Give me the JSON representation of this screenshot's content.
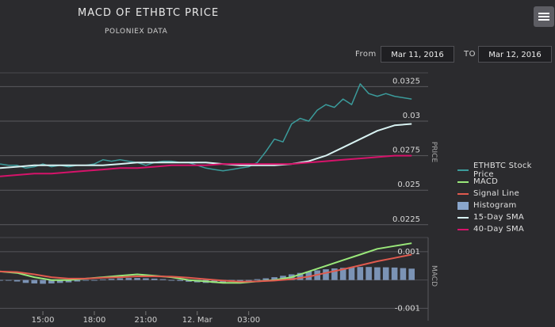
{
  "header": {
    "title": "MACD OF ETHBTC PRICE",
    "subtitle": "POLONIEX DATA"
  },
  "range": {
    "from_label": "From",
    "from_value": "Mar 11, 2016",
    "to_label": "TO",
    "to_value": "Mar 12, 2016"
  },
  "colors": {
    "background": "#2b2b2e",
    "price": "#3b9b9b",
    "macd": "#9ae87a",
    "signal": "#e05a4e",
    "histogram": "#8aa6cc",
    "sma15": "#d8f2f2",
    "sma40": "#d6136a"
  },
  "chart_data": [
    {
      "type": "line",
      "ylabel": "PRICE",
      "ylim": [
        0.0218,
        0.0335
      ],
      "yticks": [
        0.0225,
        0.025,
        0.0275,
        0.03,
        0.0325
      ],
      "ytick_labels": [
        "0.0225",
        "0.025",
        "0.0275",
        "0.03",
        "0.0325"
      ],
      "xlim": [
        12.5,
        37.0
      ],
      "xticks": [
        15,
        18,
        21,
        24,
        27
      ],
      "xtick_labels": [
        "15:00",
        "18:00",
        "21:00",
        "12. Mar",
        "03:00"
      ],
      "grid": true,
      "series": [
        {
          "name": "ETHBTC Stock Price",
          "x": [
            12.5,
            13.0,
            13.5,
            14.0,
            14.5,
            15.0,
            15.5,
            16.0,
            16.5,
            17.0,
            17.5,
            18.0,
            18.5,
            19.0,
            19.5,
            20.0,
            20.5,
            21.0,
            21.5,
            22.0,
            22.5,
            23.0,
            23.5,
            24.0,
            24.5,
            25.0,
            25.5,
            26.0,
            26.5,
            27.0,
            27.5,
            28.0,
            28.5,
            29.0,
            29.5,
            30.0,
            30.5,
            31.0,
            31.5,
            32.0,
            32.5,
            33.0,
            33.5,
            34.0,
            34.5,
            35.0,
            35.5,
            36.0,
            36.5
          ],
          "y": [
            0.0269,
            0.0268,
            0.0268,
            0.0266,
            0.0267,
            0.0269,
            0.0267,
            0.0268,
            0.0267,
            0.0268,
            0.0268,
            0.0269,
            0.0272,
            0.0271,
            0.0272,
            0.0271,
            0.027,
            0.0268,
            0.027,
            0.0271,
            0.0271,
            0.027,
            0.027,
            0.0268,
            0.0266,
            0.0265,
            0.0264,
            0.0265,
            0.0266,
            0.0267,
            0.027,
            0.0278,
            0.0287,
            0.0285,
            0.0298,
            0.0302,
            0.03,
            0.0308,
            0.0312,
            0.031,
            0.0316,
            0.0312,
            0.0327,
            0.032,
            0.0318,
            0.032,
            0.0318,
            0.0317,
            0.0316
          ]
        },
        {
          "name": "15-Day SMA",
          "x": [
            12.5,
            13.5,
            14.5,
            15.5,
            16.5,
            17.5,
            18.5,
            19.5,
            20.5,
            21.5,
            22.5,
            23.5,
            24.5,
            25.5,
            26.5,
            27.5,
            28.5,
            29.5,
            30.5,
            31.5,
            32.5,
            33.5,
            34.5,
            35.5,
            36.5
          ],
          "y": [
            0.0266,
            0.0267,
            0.0268,
            0.0268,
            0.0268,
            0.0268,
            0.0268,
            0.0269,
            0.027,
            0.027,
            0.027,
            0.027,
            0.027,
            0.0269,
            0.0268,
            0.0268,
            0.0268,
            0.0269,
            0.0271,
            0.0275,
            0.0281,
            0.0287,
            0.0293,
            0.0297,
            0.0298
          ]
        },
        {
          "name": "40-Day SMA",
          "x": [
            12.5,
            13.5,
            14.5,
            15.5,
            16.5,
            17.5,
            18.5,
            19.5,
            20.5,
            21.5,
            22.5,
            23.5,
            24.5,
            25.5,
            26.5,
            27.5,
            28.5,
            29.5,
            30.5,
            31.5,
            32.5,
            33.5,
            34.5,
            35.5,
            36.5
          ],
          "y": [
            0.026,
            0.0261,
            0.0262,
            0.0262,
            0.0263,
            0.0264,
            0.0265,
            0.0266,
            0.0266,
            0.0267,
            0.0268,
            0.0268,
            0.0268,
            0.0269,
            0.0269,
            0.0269,
            0.0269,
            0.0269,
            0.027,
            0.0271,
            0.0272,
            0.0273,
            0.0274,
            0.0275,
            0.0275
          ]
        }
      ]
    },
    {
      "type": "line",
      "ylabel": "MACD",
      "ylim": [
        -0.0011,
        0.0015
      ],
      "yticks": [
        -0.001,
        0.001
      ],
      "ytick_labels": [
        "-0.001",
        "0.001"
      ],
      "xlim": [
        12.5,
        37.0
      ],
      "xticks": [
        15,
        18,
        21,
        24,
        27
      ],
      "xtick_labels": [
        "15:00",
        "18:00",
        "21:00",
        "12. Mar",
        "03:00"
      ],
      "grid": true,
      "series": [
        {
          "name": "MACD",
          "x": [
            12.5,
            13.5,
            14.5,
            15.5,
            16.5,
            17.5,
            18.5,
            19.5,
            20.5,
            21.5,
            22.5,
            23.5,
            24.5,
            25.5,
            26.5,
            27.5,
            28.5,
            29.5,
            30.5,
            31.5,
            32.5,
            33.5,
            34.5,
            35.5,
            36.5
          ],
          "y": [
            0.0003,
            0.00025,
            0.0001,
            0.0,
            0.0,
            5e-05,
            0.0001,
            0.00015,
            0.0002,
            0.00015,
            0.0001,
            0.0,
            -5e-05,
            -0.0001,
            -0.0001,
            -5e-05,
            0.0,
            0.0001,
            0.0003,
            0.0005,
            0.0007,
            0.0009,
            0.0011,
            0.0012,
            0.0013
          ]
        },
        {
          "name": "Signal Line",
          "x": [
            12.5,
            13.5,
            14.5,
            15.5,
            16.5,
            17.5,
            18.5,
            19.5,
            20.5,
            21.5,
            22.5,
            23.5,
            24.5,
            25.5,
            26.5,
            27.5,
            28.5,
            29.5,
            30.5,
            31.5,
            32.5,
            33.5,
            34.5,
            35.5,
            36.5
          ],
          "y": [
            0.0003,
            0.00028,
            0.0002,
            0.0001,
            5e-05,
            5e-05,
            8e-05,
            0.0001,
            0.00013,
            0.00013,
            0.00012,
            8e-05,
            3e-05,
            -2e-05,
            -6e-05,
            -5e-05,
            -2e-05,
            3e-05,
            0.00012,
            0.00025,
            0.00038,
            0.00052,
            0.00066,
            0.00078,
            0.0009
          ]
        },
        {
          "name": "Histogram",
          "x": [
            12.5,
            13.0,
            13.5,
            14.0,
            14.5,
            15.0,
            15.5,
            16.0,
            16.5,
            17.0,
            17.5,
            18.0,
            18.5,
            19.0,
            19.5,
            20.0,
            20.5,
            21.0,
            21.5,
            22.0,
            22.5,
            23.0,
            23.5,
            24.0,
            24.5,
            25.0,
            25.5,
            26.0,
            26.5,
            27.0,
            27.5,
            28.0,
            28.5,
            29.0,
            29.5,
            30.0,
            30.5,
            31.0,
            31.5,
            32.0,
            32.5,
            33.0,
            33.5,
            34.0,
            34.5,
            35.0,
            35.5,
            36.0,
            36.5
          ],
          "y": [
            0.0,
            -2e-05,
            -5e-05,
            -0.0001,
            -0.00012,
            -0.00013,
            -0.00012,
            -0.0001,
            -8e-05,
            -5e-05,
            -2e-05,
            0.0,
            2e-05,
            4e-05,
            6e-05,
            7e-05,
            7e-05,
            6e-05,
            5e-05,
            3e-05,
            0.0,
            -3e-05,
            -6e-05,
            -8e-05,
            -0.0001,
            -0.0001,
            -8e-05,
            -6e-05,
            -4e-05,
            0.0,
            3e-05,
            6e-05,
            0.0001,
            0.00015,
            0.0002,
            0.00025,
            0.0003,
            0.00034,
            0.00038,
            0.00041,
            0.00043,
            0.00045,
            0.00046,
            0.00046,
            0.00045,
            0.00045,
            0.00044,
            0.00042,
            0.0004
          ]
        }
      ]
    }
  ]
}
